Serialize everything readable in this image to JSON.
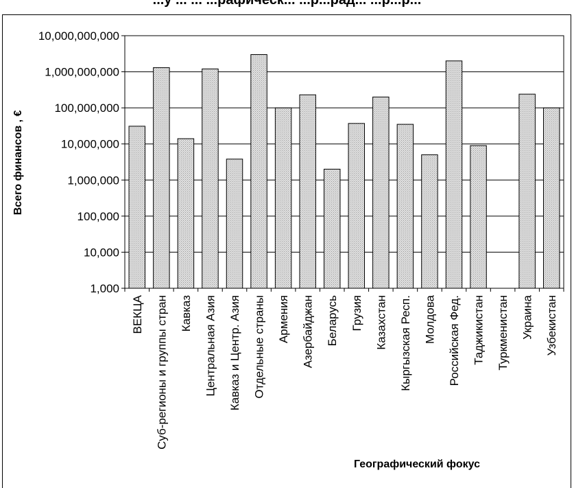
{
  "chart_data": {
    "type": "bar",
    "title": "...у ... ... ...рафическ... ...р...рад... ...р...р...",
    "ylabel": "Всего финансов , €",
    "xlabel": "Географический фокус",
    "yscale": "log",
    "ylim": [
      1000,
      10000000000
    ],
    "yticks": [
      "1,000",
      "10,000",
      "100,000",
      "1,000,000",
      "10,000,000",
      "100,000,000",
      "1,000,000,000",
      "10,000,000,000"
    ],
    "grid": true,
    "legend": "none",
    "bar_fill": "#d4d4d4",
    "categories": [
      "ВЕКЦА",
      "Суб-регионы и группы стран",
      "Кавказ",
      "Центральная Азия",
      "Кавказ и Центр. Азия",
      "Отдельные страны",
      "Армения",
      "Азербайджан",
      "Беларусь",
      "Грузия",
      "Казахстан",
      "Кыргызская Респ.",
      "Молдова",
      "Российская Фед.",
      "Таджикистан",
      "Туркменистан",
      "Украина",
      "Узбекистан"
    ],
    "values": [
      31000000,
      1300000000,
      14000000,
      1200000000,
      3800000,
      3000000000,
      100000000,
      230000000,
      2000000,
      37000000,
      200000000,
      35000000,
      5000000,
      2000000000,
      9000000,
      null,
      240000000,
      100000000
    ]
  }
}
